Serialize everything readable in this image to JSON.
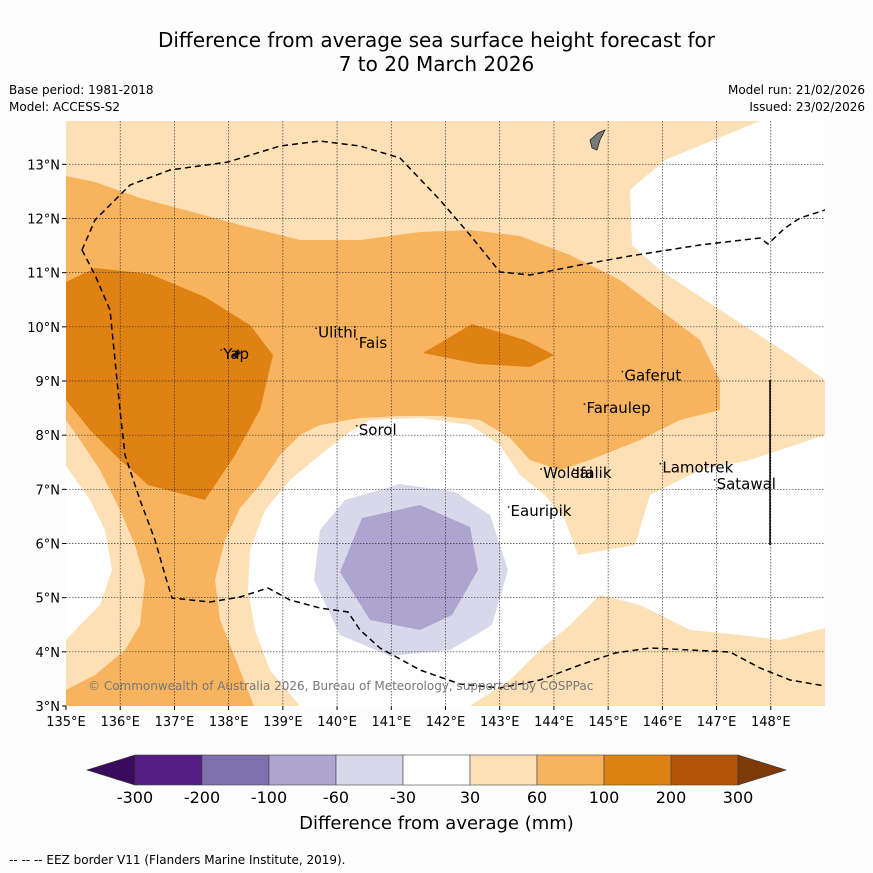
{
  "title_line1": "Difference from average sea surface height forecast for",
  "title_line2": "7 to 20 March 2026",
  "base_period": "Base period: 1981-2018",
  "model": "Model: ACCESS-S2",
  "model_run": "Model run: 21/02/2026",
  "issued": "Issued: 23/02/2026",
  "copyright": "© Commonwealth of Australia 2026, Bureau of Meteorology, supported by COSPPac",
  "lon_ticks": [
    "135°E",
    "136°E",
    "137°E",
    "138°E",
    "139°E",
    "140°E",
    "141°E",
    "142°E",
    "143°E",
    "144°E",
    "145°E",
    "146°E",
    "147°E",
    "148°E"
  ],
  "lat_ticks": [
    "3°N",
    "4°N",
    "5°N",
    "6°N",
    "7°N",
    "8°N",
    "9°N",
    "10°N",
    "11°N",
    "12°N",
    "13°N"
  ],
  "places": [
    {
      "name": "Yap",
      "lon": 137.9,
      "lat": 9.5
    },
    {
      "name": "Ulithi",
      "lon": 139.65,
      "lat": 9.9
    },
    {
      "name": "Fais",
      "lon": 140.4,
      "lat": 9.7
    },
    {
      "name": "Sorol",
      "lon": 140.4,
      "lat": 8.1
    },
    {
      "name": "Gaferut",
      "lon": 145.3,
      "lat": 9.1
    },
    {
      "name": "Faraulep",
      "lon": 144.6,
      "lat": 8.5
    },
    {
      "name": "Woleai",
      "lon": 143.8,
      "lat": 7.3
    },
    {
      "name": "Ifalik",
      "lon": 144.4,
      "lat": 7.3
    },
    {
      "name": "Lamotrek",
      "lon": 146.0,
      "lat": 7.4
    },
    {
      "name": "Satawal",
      "lon": 147.0,
      "lat": 7.1
    },
    {
      "name": "Eauripik",
      "lon": 143.2,
      "lat": 6.6
    }
  ],
  "colorbar": {
    "labels": [
      "-300",
      "-200",
      "-100",
      "-60",
      "-30",
      "30",
      "60",
      "100",
      "200",
      "300"
    ],
    "colors": [
      "#541d84",
      "#7e6fad",
      "#ada4cf",
      "#d8d8ea",
      "#ffffff",
      "#fde0b5",
      "#f8b35e",
      "#e08213",
      "#b25406"
    ],
    "under_color": "#3a0a5c",
    "over_color": "#7e3a06",
    "title": "Difference from average (mm)"
  },
  "footnote": "--  --  -- EEZ border V11 (Flanders Marine Institute, 2019)."
}
